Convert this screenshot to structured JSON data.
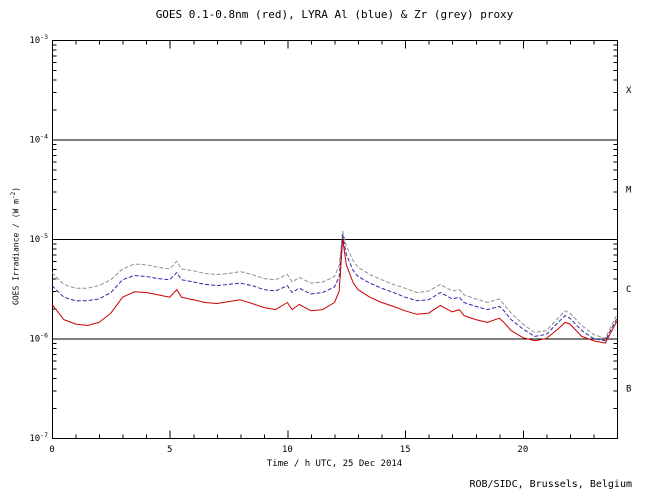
{
  "header": {
    "title": "GOES 0.1-0.8nm (red), LYRA Al (blue) & Zr (grey) proxy"
  },
  "axes": {
    "xlabel": "Time / h UTC, 25 Dec 2014",
    "ylabel_prefix": "GOES Irradiance / (W m",
    "ylabel_sup": "-2",
    "ylabel_suffix": ")"
  },
  "footer": {
    "credit": "ROB/SIDC, Brussels, Belgium"
  },
  "chart_data": {
    "type": "line",
    "title": "GOES 0.1-0.8nm (red), LYRA Al (blue) & Zr (grey) proxy",
    "xlabel": "Time / h UTC, 25 Dec 2014",
    "ylabel": "GOES Irradiance / (W m-2)",
    "xlim": [
      0,
      24
    ],
    "ylim": [
      1e-07,
      0.001
    ],
    "ylog": true,
    "grid": false,
    "xticks": {
      "major": [
        0,
        5,
        10,
        15,
        20
      ],
      "labels": [
        "0",
        "5",
        "10",
        "15",
        "20"
      ],
      "minor_step": 1
    },
    "yticks": {
      "exponents": [
        -3,
        -4,
        -5,
        -6,
        -7
      ]
    },
    "class_lines": [
      0.0001,
      1e-05,
      1e-06
    ],
    "class_labels": [
      {
        "label": "X",
        "value": 0.000316
      },
      {
        "label": "M",
        "value": 3.16e-05
      },
      {
        "label": "C",
        "value": 3.16e-06
      },
      {
        "label": "B",
        "value": 3.16e-07
      }
    ],
    "x": [
      0,
      0.5,
      1,
      1.5,
      2,
      2.5,
      3,
      3.5,
      4,
      4.5,
      5,
      5.3,
      5.5,
      6,
      6.5,
      7,
      7.5,
      8,
      8.5,
      9,
      9.5,
      10,
      10.2,
      10.5,
      11,
      11.5,
      12,
      12.2,
      12.35,
      12.5,
      12.8,
      13,
      13.5,
      14,
      14.5,
      15,
      15.5,
      16,
      16.5,
      17,
      17.3,
      17.5,
      18,
      18.5,
      19,
      19.2,
      19.5,
      20,
      20.5,
      21,
      21.5,
      21.8,
      22,
      22.5,
      23,
      23.5,
      24
    ],
    "series": [
      {
        "name": "LYRA Zr proxy",
        "color": "#909090",
        "dash": "4 2",
        "values": [
          4.6e-06,
          3.5e-06,
          3.2e-06,
          3.2e-06,
          3.4e-06,
          3.9e-06,
          5e-06,
          5.6e-06,
          5.5e-06,
          5.2e-06,
          5e-06,
          6e-06,
          5e-06,
          4.8e-06,
          4.5e-06,
          4.4e-06,
          4.5e-06,
          4.7e-06,
          4.4e-06,
          4e-06,
          3.9e-06,
          4.4e-06,
          3.7e-06,
          4.1e-06,
          3.6e-06,
          3.7e-06,
          4.2e-06,
          5.4e-06,
          1.2e-05,
          8.5e-06,
          6e-06,
          5.2e-06,
          4.4e-06,
          3.9e-06,
          3.5e-06,
          3.2e-06,
          2.9e-06,
          3e-06,
          3.5e-06,
          3e-06,
          3.1e-06,
          2.75e-06,
          2.5e-06,
          2.3e-06,
          2.5e-06,
          2.2e-06,
          1.8e-06,
          1.4e-06,
          1.15e-06,
          1.2e-06,
          1.6e-06,
          1.9e-06,
          1.8e-06,
          1.35e-06,
          1.1e-06,
          1e-06,
          1.75e-06
        ]
      },
      {
        "name": "LYRA Al proxy",
        "color": "#2a2aaa",
        "dash": "4 2",
        "values": [
          3.4e-06,
          2.6e-06,
          2.4e-06,
          2.4e-06,
          2.5e-06,
          2.9e-06,
          3.9e-06,
          4.3e-06,
          4.2e-06,
          4e-06,
          3.9e-06,
          4.6e-06,
          3.9e-06,
          3.7e-06,
          3.5e-06,
          3.4e-06,
          3.5e-06,
          3.6e-06,
          3.4e-06,
          3.1e-06,
          3e-06,
          3.4e-06,
          2.9e-06,
          3.2e-06,
          2.8e-06,
          2.9e-06,
          3.3e-06,
          4.2e-06,
          1.1e-05,
          7e-06,
          4.8e-06,
          4.2e-06,
          3.6e-06,
          3.2e-06,
          2.9e-06,
          2.6e-06,
          2.4e-06,
          2.45e-06,
          2.9e-06,
          2.5e-06,
          2.6e-06,
          2.3e-06,
          2.1e-06,
          1.95e-06,
          2.1e-06,
          1.9e-06,
          1.55e-06,
          1.25e-06,
          1.05e-06,
          1.1e-06,
          1.45e-06,
          1.7e-06,
          1.6e-06,
          1.2e-06,
          1e-06,
          9.5e-07,
          1.6e-06
        ]
      },
      {
        "name": "GOES 0.1-0.8nm",
        "color": "#cc0000",
        "dash": "",
        "values": [
          2.2e-06,
          1.55e-06,
          1.4e-06,
          1.35e-06,
          1.45e-06,
          1.8e-06,
          2.6e-06,
          2.95e-06,
          2.9e-06,
          2.75e-06,
          2.6e-06,
          3.1e-06,
          2.6e-06,
          2.45e-06,
          2.3e-06,
          2.25e-06,
          2.35e-06,
          2.45e-06,
          2.25e-06,
          2.05e-06,
          1.95e-06,
          2.3e-06,
          1.95e-06,
          2.2e-06,
          1.9e-06,
          1.95e-06,
          2.3e-06,
          3e-06,
          1e-05,
          5.5e-06,
          3.6e-06,
          3.1e-06,
          2.6e-06,
          2.3e-06,
          2.1e-06,
          1.9e-06,
          1.75e-06,
          1.8e-06,
          2.15e-06,
          1.85e-06,
          1.95e-06,
          1.7e-06,
          1.55e-06,
          1.45e-06,
          1.6e-06,
          1.45e-06,
          1.2e-06,
          1.02e-06,
          9.5e-07,
          1e-06,
          1.25e-06,
          1.45e-06,
          1.4e-06,
          1.05e-06,
          9.5e-07,
          9e-07,
          1.5e-06
        ]
      }
    ]
  }
}
